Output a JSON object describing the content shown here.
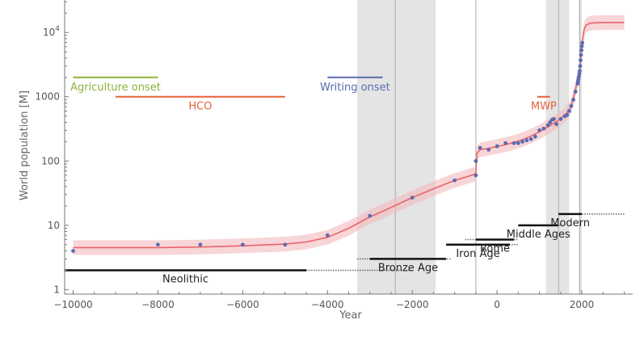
{
  "chart_data": {
    "type": "scatter",
    "title": "",
    "xlabel": "Year",
    "ylabel": "World population [M]",
    "xlim": [
      -10200,
      3200
    ],
    "ylim": [
      0.85,
      32000
    ],
    "yscale": "log",
    "grid": false,
    "x_ticks": [
      {
        "value": -10000,
        "label": "−10000"
      },
      {
        "value": -8000,
        "label": "−8000"
      },
      {
        "value": -6000,
        "label": "−6000"
      },
      {
        "value": -4000,
        "label": "−4000"
      },
      {
        "value": -2000,
        "label": "−2000"
      },
      {
        "value": 0,
        "label": "0"
      },
      {
        "value": 2000,
        "label": "2000"
      }
    ],
    "y_ticks": [
      {
        "value": 1,
        "label": "1"
      },
      {
        "value": 10,
        "label": "10"
      },
      {
        "value": 100,
        "label": "100"
      },
      {
        "value": 1000,
        "label": "1000"
      },
      {
        "value": 10000,
        "label": "10",
        "sup": "4"
      }
    ],
    "series": [
      {
        "kind": "points",
        "color": "#5B6BB0",
        "x": [
          -10000,
          -8000,
          -7000,
          -6000,
          -5000,
          -4000,
          -3000,
          -2000,
          -1000,
          -500,
          -500,
          -400,
          -200,
          0,
          200,
          400,
          500,
          600,
          700,
          800,
          900,
          1000,
          1100,
          1200,
          1250,
          1300,
          1340,
          1400,
          1500,
          1600,
          1650,
          1700,
          1750,
          1800,
          1850,
          1900,
          1910,
          1920,
          1930,
          1940,
          1950,
          1960,
          1970,
          1980,
          1990,
          2000,
          2010
        ],
        "y": [
          4,
          5,
          5,
          5,
          5,
          7,
          14,
          27,
          50,
          60,
          100,
          160,
          150,
          170,
          190,
          190,
          190,
          200,
          210,
          220,
          240,
          300,
          320,
          360,
          400,
          440,
          450,
          375,
          450,
          500,
          520,
          600,
          720,
          900,
          1200,
          1600,
          1750,
          1900,
          2070,
          2300,
          2520,
          3000,
          3700,
          4450,
          5300,
          6100,
          6900
        ]
      },
      {
        "kind": "fit",
        "color": "#E8656B",
        "band_color": "#F4B9BD",
        "x": [
          -10000,
          -9000,
          -8000,
          -7000,
          -6000,
          -5000,
          -4500,
          -4000,
          -3500,
          -3000,
          -2500,
          -2000,
          -1500,
          -1000,
          -750,
          -500,
          -480,
          -400,
          -200,
          0,
          200,
          400,
          600,
          800,
          1000,
          1200,
          1400,
          1500,
          1600,
          1700,
          1750,
          1800,
          1850,
          1900,
          1950,
          2000,
          2050,
          2100,
          2200,
          2400,
          2600,
          2800,
          3000
        ],
        "y": [
          4.5,
          4.5,
          4.5,
          4.6,
          4.8,
          5.1,
          5.5,
          6.5,
          9,
          13.5,
          19,
          27,
          37,
          50,
          56,
          63,
          130,
          150,
          158,
          168,
          180,
          195,
          215,
          245,
          285,
          340,
          410,
          460,
          520,
          620,
          720,
          950,
          1300,
          1800,
          2600,
          6000,
          11000,
          13000,
          14000,
          14200,
          14300,
          14300,
          14300
        ],
        "band_factor": 1.3
      }
    ],
    "annotations": [
      {
        "label": "Agriculture onset",
        "x0": -10000,
        "x1": -8000,
        "y": 2000,
        "color": "#8DB23A"
      },
      {
        "label": "HCO",
        "x0": -9000,
        "x1": -5000,
        "y": 1000,
        "color": "#E8613A"
      },
      {
        "label": "Writing onset",
        "x0": -4000,
        "x1": -2700,
        "y": 2000,
        "color": "#5B6BB0"
      },
      {
        "label": "MWP",
        "x0": 950,
        "x1": 1250,
        "y": 1000,
        "color": "#E8613A"
      }
    ],
    "shaded_regions": [
      {
        "x0": -3300,
        "x1": -1450
      },
      {
        "x0": 1150,
        "x1": 1700
      },
      {
        "x0": 1930,
        "x1": 2000
      }
    ],
    "vertical_lines": [
      -2400,
      -500,
      1450,
      1950
    ],
    "periods": [
      {
        "label": "Neolithic",
        "solid": [
          -10200,
          -4500
        ],
        "dotted": [
          -4500,
          -2000
        ],
        "y": 2
      },
      {
        "label": "Bronze Age",
        "solid": [
          -3000,
          -1200
        ],
        "dotted": [
          -3300,
          -1100
        ],
        "y": 3
      },
      {
        "label": "Iron Age",
        "solid": [
          -1200,
          300
        ],
        "dotted": [
          -1200,
          500
        ],
        "y": 5
      },
      {
        "label": "Rome",
        "solid": [
          -500,
          400
        ],
        "dotted": [
          -750,
          500
        ],
        "y": 6
      },
      {
        "label": "Middle Ages",
        "solid": [
          500,
          1450
        ],
        "dotted": [
          500,
          1500
        ],
        "y": 10
      },
      {
        "label": "Modern",
        "solid": [
          1450,
          2000
        ],
        "dotted": [
          2000,
          3000
        ],
        "y": 15
      }
    ]
  }
}
